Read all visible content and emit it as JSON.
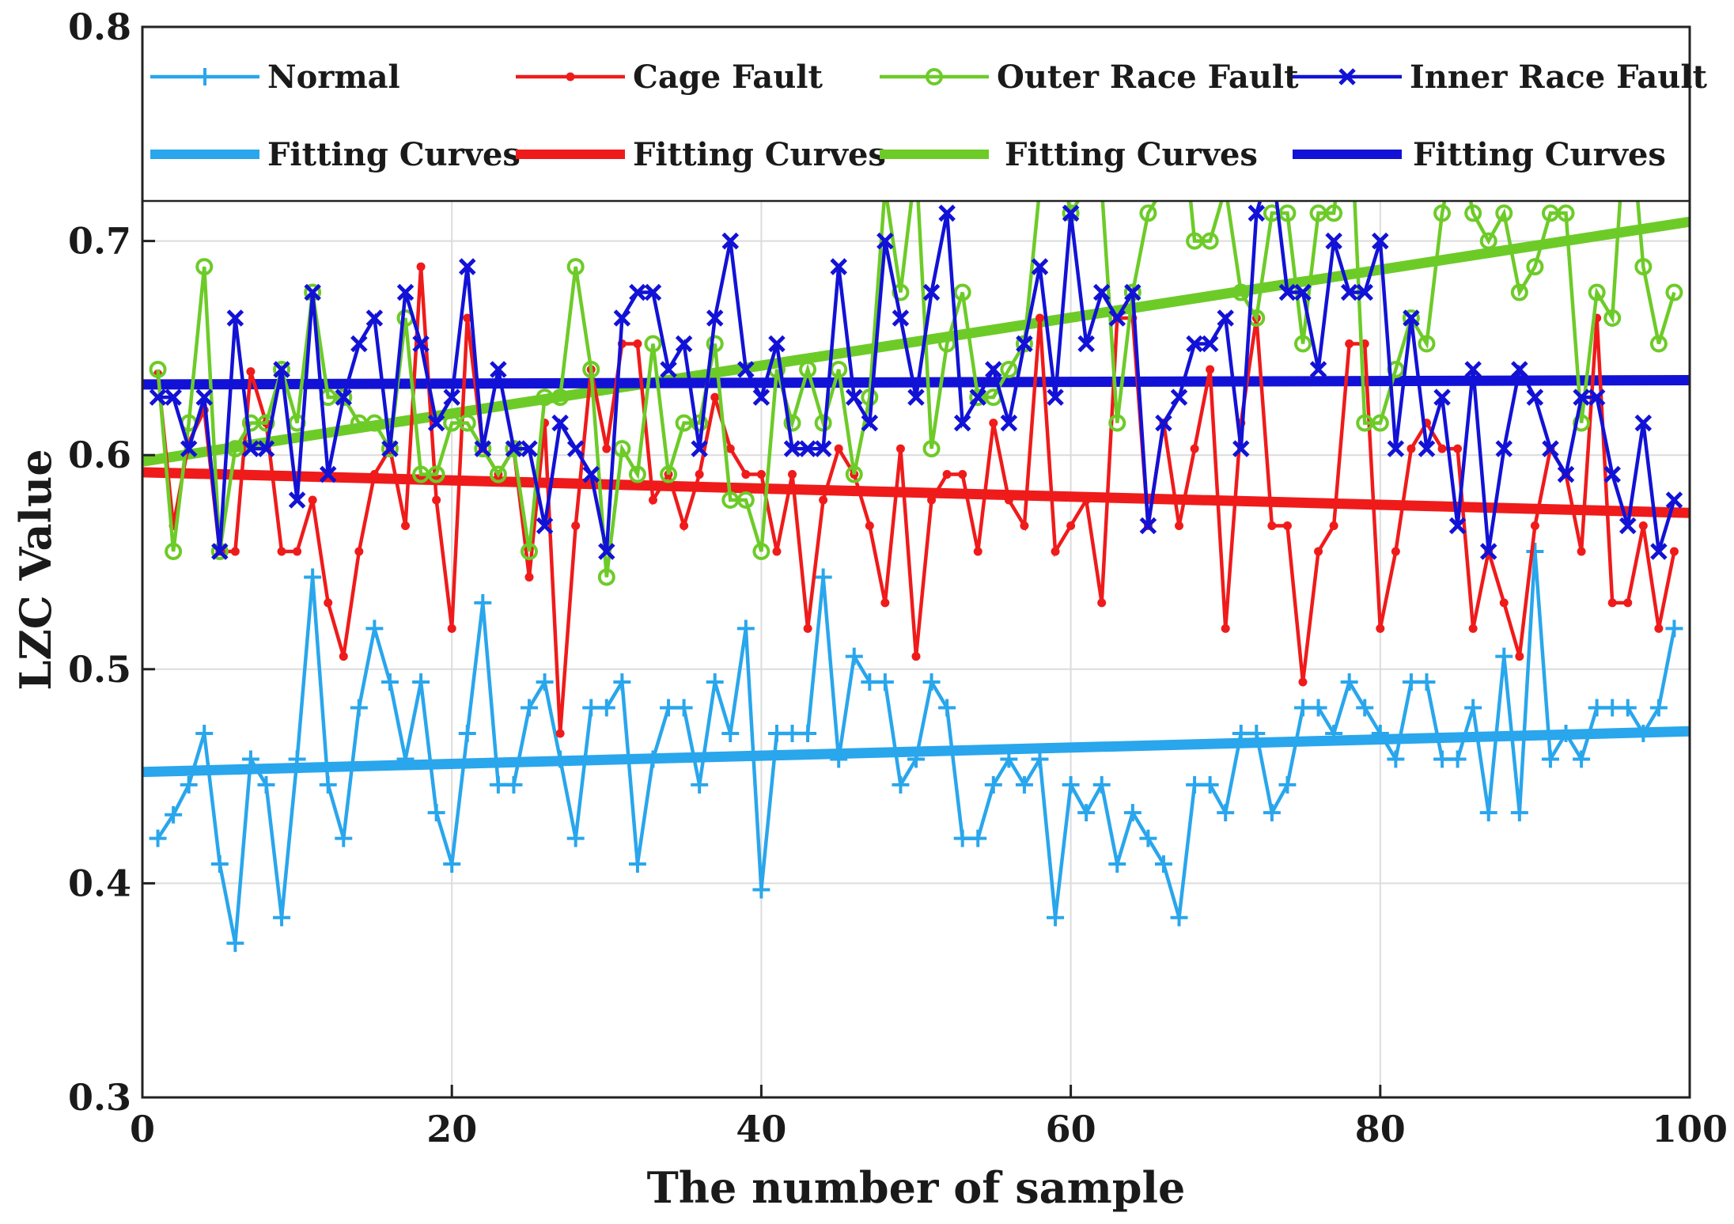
{
  "chart_data": {
    "type": "line",
    "title": "",
    "xlabel": "The number of sample",
    "ylabel": "LZC Value",
    "xlim": [
      0,
      100
    ],
    "ylim": [
      0.3,
      0.8
    ],
    "xticks": [
      0,
      20,
      40,
      60,
      80,
      100
    ],
    "xtick_labels": [
      "0",
      "20",
      "40",
      "60",
      "80",
      "100"
    ],
    "yticks": [
      0.3,
      0.4,
      0.5,
      0.6,
      0.7,
      0.8
    ],
    "ytick_labels": [
      "0.3",
      "0.4",
      "0.5",
      "0.6",
      "0.7",
      "0.8"
    ],
    "grid": true,
    "legend_placement": "top",
    "x": [
      1,
      2,
      3,
      4,
      5,
      6,
      7,
      8,
      9,
      10,
      11,
      12,
      13,
      14,
      15,
      16,
      17,
      18,
      19,
      20,
      21,
      22,
      23,
      24,
      25,
      26,
      27,
      28,
      29,
      30,
      31,
      32,
      33,
      34,
      35,
      36,
      37,
      38,
      39,
      40,
      41,
      42,
      43,
      44,
      45,
      46,
      47,
      48,
      49,
      50,
      51,
      52,
      53,
      54,
      55,
      56,
      57,
      58,
      59,
      60,
      61,
      62,
      63,
      64,
      65,
      66,
      67,
      68,
      69,
      70,
      71,
      72,
      73,
      74,
      75,
      76,
      77,
      78,
      79,
      80,
      81,
      82,
      83,
      84,
      85,
      86,
      87,
      88,
      89,
      90,
      91,
      92,
      93,
      94,
      95,
      96,
      97,
      98,
      99
    ],
    "series": [
      {
        "name": "Normal",
        "color": "#29a6ec",
        "marker": "plus",
        "values": [
          0.421,
          0.432,
          0.446,
          0.47,
          0.409,
          0.372,
          0.458,
          0.446,
          0.384,
          0.458,
          0.543,
          0.446,
          0.421,
          0.482,
          0.519,
          0.494,
          0.458,
          0.494,
          0.433,
          0.409,
          0.47,
          0.531,
          0.446,
          0.446,
          0.482,
          0.494,
          0.458,
          0.421,
          0.482,
          0.482,
          0.494,
          0.409,
          0.458,
          0.482,
          0.482,
          0.446,
          0.494,
          0.47,
          0.519,
          0.397,
          0.47,
          0.47,
          0.47,
          0.543,
          0.458,
          0.506,
          0.494,
          0.494,
          0.446,
          0.458,
          0.494,
          0.482,
          0.421,
          0.421,
          0.446,
          0.458,
          0.446,
          0.458,
          0.384,
          0.446,
          0.433,
          0.446,
          0.409,
          0.433,
          0.421,
          0.409,
          0.384,
          0.446,
          0.446,
          0.433,
          0.47,
          0.47,
          0.433,
          0.446,
          0.482,
          0.482,
          0.47,
          0.494,
          0.482,
          0.47,
          0.458,
          0.494,
          0.494,
          0.458,
          0.458,
          0.482,
          0.433,
          0.506,
          0.433,
          0.555,
          0.458,
          0.47,
          0.458,
          0.482,
          0.482,
          0.482,
          0.47,
          0.482,
          0.519
        ]
      },
      {
        "name": "Cage Fault",
        "color": "#ef1b1b",
        "marker": "dot",
        "values": [
          0.638,
          0.567,
          0.606,
          0.621,
          0.555,
          0.555,
          0.639,
          0.615,
          0.555,
          0.555,
          0.579,
          0.531,
          0.506,
          0.555,
          0.591,
          0.603,
          0.567,
          0.688,
          0.579,
          0.519,
          0.664,
          0.603,
          0.591,
          0.603,
          0.543,
          0.615,
          0.47,
          0.567,
          0.64,
          0.603,
          0.652,
          0.652,
          0.579,
          0.591,
          0.567,
          0.591,
          0.627,
          0.603,
          0.591,
          0.591,
          0.555,
          0.591,
          0.519,
          0.579,
          0.603,
          0.591,
          0.567,
          0.531,
          0.603,
          0.506,
          0.579,
          0.591,
          0.591,
          0.555,
          0.615,
          0.579,
          0.567,
          0.664,
          0.555,
          0.567,
          0.579,
          0.531,
          0.664,
          0.664,
          0.567,
          0.615,
          0.567,
          0.603,
          0.64,
          0.519,
          0.615,
          0.664,
          0.567,
          0.567,
          0.494,
          0.555,
          0.567,
          0.652,
          0.652,
          0.519,
          0.555,
          0.603,
          0.615,
          0.603,
          0.603,
          0.519,
          0.555,
          0.531,
          0.506,
          0.567,
          0.603,
          0.591,
          0.555,
          0.664,
          0.531,
          0.531,
          0.567,
          0.519,
          0.555
        ]
      },
      {
        "name": "Outer Race Fault",
        "color": "#6dcb28",
        "marker": "circle",
        "values": [
          0.64,
          0.555,
          0.615,
          0.688,
          0.555,
          0.603,
          0.615,
          0.615,
          0.64,
          0.615,
          0.676,
          0.627,
          0.627,
          0.615,
          0.615,
          0.603,
          0.664,
          0.591,
          0.591,
          0.615,
          0.615,
          0.603,
          0.591,
          0.603,
          0.555,
          0.627,
          0.627,
          0.688,
          0.64,
          0.543,
          0.603,
          0.591,
          0.652,
          0.591,
          0.615,
          0.615,
          0.652,
          0.579,
          0.579,
          0.555,
          0.64,
          0.615,
          0.64,
          0.615,
          0.64,
          0.591,
          0.627,
          0.725,
          0.676,
          0.737,
          0.603,
          0.652,
          0.676,
          0.627,
          0.627,
          0.64,
          0.652,
          0.725,
          0.749,
          0.713,
          0.725,
          0.725,
          0.615,
          0.676,
          0.713,
          0.725,
          0.774,
          0.7,
          0.7,
          0.725,
          0.676,
          0.664,
          0.713,
          0.713,
          0.652,
          0.713,
          0.713,
          0.774,
          0.615,
          0.615,
          0.64,
          0.664,
          0.652,
          0.713,
          0.749,
          0.713,
          0.7,
          0.713,
          0.676,
          0.688,
          0.713,
          0.713,
          0.615,
          0.676,
          0.664,
          0.774,
          0.688,
          0.652,
          0.676
        ]
      },
      {
        "name": "Inner Race Fault",
        "color": "#1212d6",
        "marker": "x",
        "values": [
          0.627,
          0.627,
          0.603,
          0.627,
          0.555,
          0.664,
          0.603,
          0.603,
          0.64,
          0.579,
          0.676,
          0.591,
          0.627,
          0.652,
          0.664,
          0.603,
          0.676,
          0.652,
          0.615,
          0.627,
          0.688,
          0.603,
          0.64,
          0.603,
          0.603,
          0.567,
          0.615,
          0.603,
          0.591,
          0.555,
          0.664,
          0.676,
          0.676,
          0.64,
          0.652,
          0.603,
          0.664,
          0.7,
          0.64,
          0.627,
          0.652,
          0.603,
          0.603,
          0.603,
          0.688,
          0.627,
          0.615,
          0.7,
          0.664,
          0.627,
          0.676,
          0.713,
          0.615,
          0.627,
          0.64,
          0.615,
          0.652,
          0.688,
          0.627,
          0.713,
          0.652,
          0.676,
          0.664,
          0.676,
          0.567,
          0.615,
          0.627,
          0.652,
          0.652,
          0.664,
          0.603,
          0.713,
          0.737,
          0.676,
          0.676,
          0.64,
          0.7,
          0.676,
          0.676,
          0.7,
          0.603,
          0.664,
          0.603,
          0.627,
          0.567,
          0.64,
          0.555,
          0.603,
          0.64,
          0.627,
          0.603,
          0.591,
          0.627,
          0.627,
          0.591,
          0.567,
          0.615,
          0.555,
          0.579
        ]
      }
    ],
    "fitting_curves": [
      {
        "name": "Fitting Curves",
        "color": "#29a6ec",
        "x": [
          0,
          100
        ],
        "values": [
          0.452,
          0.471
        ]
      },
      {
        "name": "Fitting Curves",
        "color": "#ef1b1b",
        "x": [
          0,
          100
        ],
        "values": [
          0.592,
          0.573
        ]
      },
      {
        "name": "Fitting Curves",
        "color": "#6dcb28",
        "x": [
          0,
          100
        ],
        "values": [
          0.597,
          0.709
        ]
      },
      {
        "name": "Fitting Curves",
        "color": "#1212d6",
        "x": [
          0,
          100
        ],
        "values": [
          0.633,
          0.635
        ]
      }
    ]
  }
}
